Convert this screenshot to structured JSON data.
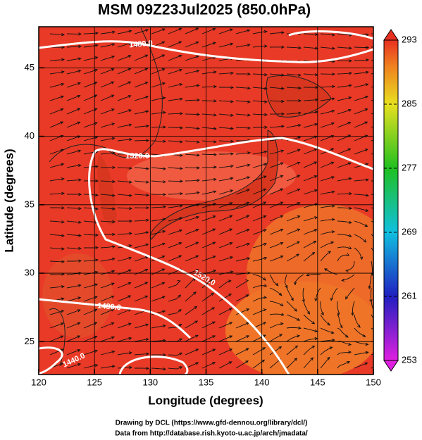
{
  "title": "MSM 09Z23Jul2025 (850.0hPa)",
  "map": {
    "xlabel": "Longitude (degrees)",
    "ylabel": "Latitude  (degrees)",
    "xlim": [
      120,
      150
    ],
    "ylim": [
      22.6,
      48
    ],
    "xticks": [
      120,
      125,
      130,
      135,
      140,
      145,
      150
    ],
    "yticks": [
      25,
      30,
      35,
      40,
      45
    ],
    "contour_labels": [
      "1480.0",
      "1520.0",
      "1520.0",
      "1480.0",
      "1440.0"
    ]
  },
  "colorbar": {
    "lim": [
      253,
      293
    ],
    "ticks": [
      253,
      261,
      269,
      277,
      285,
      293
    ]
  },
  "credits": [
    "Drawing by DCL (https://www.gfd-dennou.org/library/dcl/)",
    "Data from http://database.rish.kyoto-u.ac.jp/arch/jmadata/"
  ]
}
